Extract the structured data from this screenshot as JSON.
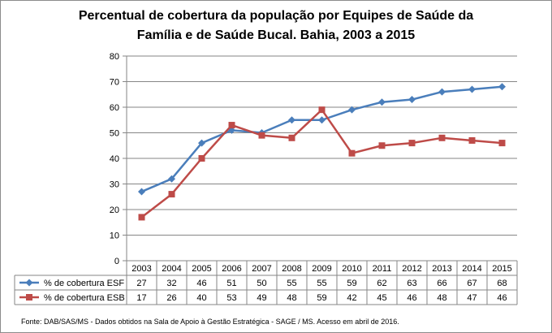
{
  "chart_data": {
    "type": "line",
    "title_line1": "Percentual de cobertura da população por Equipes de Saúde da",
    "title_line2": "Família e de Saúde Bucal. Bahia, 2003 a 2015",
    "categories": [
      "2003",
      "2004",
      "2005",
      "2006",
      "2007",
      "2008",
      "2009",
      "2010",
      "2011",
      "2012",
      "2013",
      "2014",
      "2015"
    ],
    "ylim": [
      0,
      80
    ],
    "yticks": [
      0,
      10,
      20,
      30,
      40,
      50,
      60,
      70,
      80
    ],
    "grid": true,
    "data_table": true,
    "series": [
      {
        "name": "% de cobertura ESF",
        "color": "#4a7ebb",
        "marker": "diamond",
        "values": [
          27,
          32,
          46,
          51,
          50,
          55,
          55,
          59,
          62,
          63,
          66,
          67,
          68
        ]
      },
      {
        "name": "% de cobertura ESB",
        "color": "#be4b48",
        "marker": "square",
        "values": [
          17,
          26,
          40,
          53,
          49,
          48,
          59,
          42,
          45,
          46,
          48,
          47,
          46
        ]
      }
    ],
    "source": "Fonte: DAB/SAS/MS - Dados obtidos na Sala de Apoio à Gestão Estratégica - SAGE / MS. Acesso em abril de 2016."
  }
}
